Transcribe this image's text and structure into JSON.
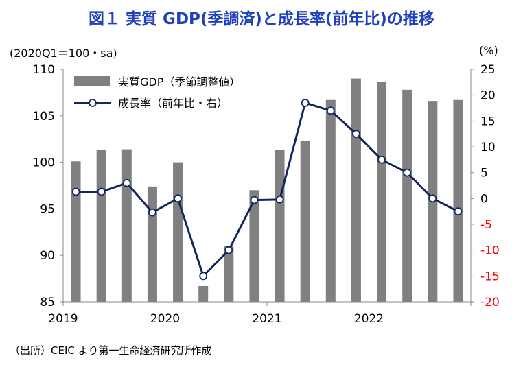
{
  "title": "図１ 実質 GDP(季調済)と成長率(前年比)の推移",
  "left_unit": "(2020Q1＝100・sa)",
  "right_unit": "(%)",
  "source": "（出所）CEIC より第一生命経済研究所作成",
  "colors": {
    "bar": "#808080",
    "line": "#13265c",
    "title": "#1f3fbf",
    "negative": "#ff0000"
  },
  "chart_data": {
    "type": "bar",
    "title": "図１ 実質 GDP(季調済)と成長率(前年比)の推移",
    "categories": [
      "2019Q1",
      "2019Q2",
      "2019Q3",
      "2019Q4",
      "2020Q1",
      "2020Q2",
      "2020Q3",
      "2020Q4",
      "2021Q1",
      "2021Q2",
      "2021Q3",
      "2021Q4",
      "2022Q1",
      "2022Q2",
      "2022Q3",
      "2022Q4"
    ],
    "year_labels": [
      {
        "label": "2019",
        "index": 0
      },
      {
        "label": "2020",
        "index": 4
      },
      {
        "label": "2021",
        "index": 8
      },
      {
        "label": "2022",
        "index": 12
      }
    ],
    "series": [
      {
        "name": "実質GDP（季節調整値）",
        "type": "bar",
        "axis": "left",
        "values": [
          100.1,
          101.3,
          101.4,
          97.4,
          100.0,
          86.7,
          91.0,
          97.0,
          101.3,
          102.3,
          106.7,
          109.0,
          108.6,
          107.8,
          106.6,
          106.7
        ]
      },
      {
        "name": "成長率（前年比・右）",
        "type": "line",
        "axis": "right",
        "values": [
          1.3,
          1.3,
          3.0,
          -2.7,
          0.0,
          -15.0,
          -10.0,
          -0.3,
          -0.2,
          18.5,
          17.0,
          12.5,
          7.5,
          5.0,
          0.0,
          -2.5
        ]
      }
    ],
    "left_axis": {
      "min": 85,
      "max": 110,
      "ticks": [
        85,
        90,
        95,
        100,
        105,
        110
      ]
    },
    "right_axis": {
      "min": -20,
      "max": 25,
      "ticks": [
        -20,
        -15,
        -10,
        -5,
        0,
        5,
        10,
        15,
        20,
        25
      ]
    },
    "legend": {
      "position": "top-left"
    },
    "grid": false
  }
}
